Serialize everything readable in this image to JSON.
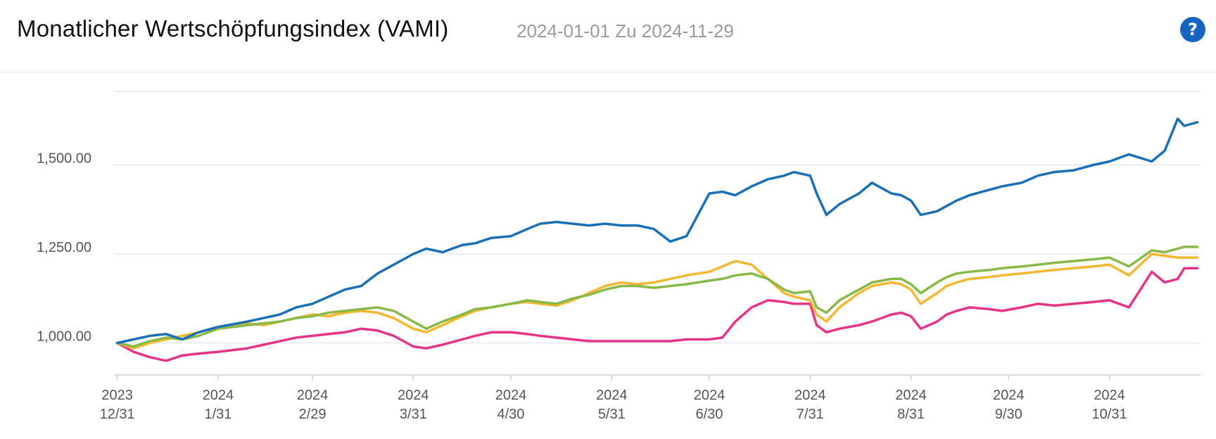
{
  "header": {
    "title": "Monatlicher Wertschöpfungsindex (VAMI)",
    "date_range": "2024-01-01 Zu 2024-11-29",
    "help_label": "?"
  },
  "colors": {
    "blue": "#1a6fb5",
    "green": "#88b848",
    "yellow": "#f5b731",
    "pink": "#e53488",
    "grid": "#e3e8ee",
    "axis": "#c8d0da",
    "help_button": "#1565c0"
  },
  "chart_data": {
    "type": "line",
    "title": "Monatlicher Wertschöpfungsindex (VAMI)",
    "xlabel": "",
    "ylabel": "",
    "ylim": [
      910,
      1760
    ],
    "yticks": [
      1000,
      1250,
      1500
    ],
    "ytick_labels": [
      "1,000.00",
      "1,250.00",
      "1,500.00"
    ],
    "grid": true,
    "xlim": [
      -1,
      333
    ],
    "x_tick_positions": [
      0,
      31,
      60,
      91,
      121,
      152,
      182,
      213,
      244,
      274,
      305
    ],
    "x_tick_years": [
      "2023",
      "2024",
      "2024",
      "2024",
      "2024",
      "2024",
      "2024",
      "2024",
      "2024",
      "2024",
      "2024"
    ],
    "x_tick_dates": [
      "12/31",
      "1/31",
      "2/29",
      "3/31",
      "4/30",
      "5/31",
      "6/30",
      "7/31",
      "8/31",
      "9/30",
      "10/31"
    ],
    "series": [
      {
        "color": "#1a6fb5",
        "x": [
          0,
          5,
          10,
          15,
          20,
          25,
          31,
          40,
          45,
          50,
          55,
          60,
          65,
          70,
          75,
          80,
          85,
          91,
          95,
          100,
          106,
          110,
          115,
          121,
          126,
          130,
          135,
          140,
          145,
          150,
          155,
          160,
          165,
          170,
          175,
          182,
          186,
          190,
          195,
          200,
          205,
          208,
          213,
          215,
          218,
          222,
          228,
          232,
          238,
          241,
          244,
          247,
          252,
          255,
          258,
          262,
          268,
          272,
          278,
          283,
          288,
          294,
          300,
          305,
          311,
          318,
          322,
          326,
          328,
          332
        ],
        "y": [
          1000,
          1010,
          1020,
          1025,
          1010,
          1030,
          1045,
          1060,
          1070,
          1080,
          1100,
          1110,
          1130,
          1150,
          1160,
          1195,
          1220,
          1250,
          1265,
          1255,
          1275,
          1280,
          1295,
          1300,
          1320,
          1335,
          1340,
          1335,
          1330,
          1335,
          1330,
          1330,
          1320,
          1285,
          1300,
          1420,
          1425,
          1415,
          1440,
          1460,
          1470,
          1480,
          1470,
          1420,
          1360,
          1390,
          1420,
          1450,
          1420,
          1415,
          1400,
          1360,
          1370,
          1385,
          1400,
          1415,
          1430,
          1440,
          1450,
          1470,
          1480,
          1485,
          1500,
          1510,
          1530,
          1510,
          1540,
          1630,
          1610,
          1620
        ]
      },
      {
        "color": "#88b848",
        "x": [
          0,
          5,
          10,
          15,
          20,
          25,
          31,
          40,
          45,
          50,
          55,
          60,
          65,
          70,
          75,
          80,
          85,
          91,
          95,
          100,
          106,
          110,
          115,
          121,
          126,
          130,
          135,
          140,
          145,
          150,
          155,
          160,
          165,
          170,
          175,
          182,
          186,
          190,
          195,
          200,
          205,
          208,
          213,
          215,
          218,
          222,
          228,
          232,
          238,
          241,
          244,
          247,
          252,
          255,
          258,
          262,
          268,
          272,
          278,
          283,
          288,
          294,
          300,
          305,
          311,
          318,
          322,
          326,
          328,
          332
        ],
        "y": [
          1000,
          990,
          1005,
          1015,
          1010,
          1020,
          1040,
          1050,
          1055,
          1060,
          1070,
          1075,
          1085,
          1090,
          1095,
          1100,
          1090,
          1060,
          1040,
          1060,
          1080,
          1095,
          1100,
          1110,
          1120,
          1115,
          1110,
          1125,
          1135,
          1150,
          1160,
          1160,
          1155,
          1160,
          1165,
          1175,
          1180,
          1190,
          1195,
          1180,
          1150,
          1140,
          1145,
          1100,
          1085,
          1120,
          1150,
          1170,
          1180,
          1180,
          1165,
          1140,
          1170,
          1185,
          1195,
          1200,
          1205,
          1210,
          1215,
          1220,
          1225,
          1230,
          1235,
          1240,
          1215,
          1260,
          1255,
          1265,
          1270,
          1270
        ]
      },
      {
        "color": "#f5b731",
        "x": [
          0,
          5,
          10,
          15,
          20,
          25,
          31,
          40,
          45,
          50,
          55,
          60,
          65,
          70,
          75,
          80,
          85,
          91,
          95,
          100,
          106,
          110,
          115,
          121,
          126,
          130,
          135,
          140,
          145,
          150,
          155,
          160,
          165,
          170,
          175,
          182,
          186,
          190,
          195,
          200,
          205,
          208,
          213,
          215,
          218,
          222,
          228,
          232,
          238,
          241,
          244,
          247,
          252,
          255,
          258,
          262,
          268,
          272,
          278,
          283,
          288,
          294,
          300,
          305,
          311,
          318,
          322,
          326,
          328,
          332
        ],
        "y": [
          1000,
          985,
          1000,
          1010,
          1020,
          1030,
          1045,
          1055,
          1050,
          1060,
          1070,
          1080,
          1075,
          1085,
          1090,
          1085,
          1070,
          1040,
          1030,
          1050,
          1075,
          1090,
          1100,
          1110,
          1115,
          1110,
          1105,
          1120,
          1140,
          1160,
          1170,
          1165,
          1170,
          1180,
          1190,
          1200,
          1215,
          1230,
          1220,
          1180,
          1140,
          1130,
          1120,
          1080,
          1060,
          1100,
          1140,
          1160,
          1170,
          1165,
          1150,
          1110,
          1140,
          1160,
          1170,
          1180,
          1185,
          1190,
          1195,
          1200,
          1205,
          1210,
          1215,
          1220,
          1190,
          1250,
          1245,
          1240,
          1240,
          1240
        ]
      },
      {
        "color": "#e53488",
        "x": [
          0,
          5,
          10,
          15,
          20,
          25,
          31,
          40,
          45,
          50,
          55,
          60,
          65,
          70,
          75,
          80,
          85,
          91,
          95,
          100,
          106,
          110,
          115,
          121,
          126,
          130,
          135,
          140,
          145,
          150,
          155,
          160,
          165,
          170,
          175,
          182,
          186,
          190,
          195,
          200,
          205,
          208,
          213,
          215,
          218,
          222,
          228,
          232,
          238,
          241,
          244,
          247,
          252,
          255,
          258,
          262,
          268,
          272,
          278,
          283,
          288,
          294,
          300,
          305,
          311,
          318,
          322,
          326,
          328,
          332
        ],
        "y": [
          1000,
          975,
          960,
          950,
          965,
          970,
          975,
          985,
          995,
          1005,
          1015,
          1020,
          1025,
          1030,
          1040,
          1035,
          1020,
          990,
          985,
          995,
          1010,
          1020,
          1030,
          1030,
          1025,
          1020,
          1015,
          1010,
          1005,
          1005,
          1005,
          1005,
          1005,
          1005,
          1010,
          1010,
          1015,
          1060,
          1100,
          1120,
          1115,
          1110,
          1110,
          1050,
          1030,
          1040,
          1050,
          1060,
          1080,
          1085,
          1075,
          1040,
          1060,
          1080,
          1090,
          1100,
          1095,
          1090,
          1100,
          1110,
          1105,
          1110,
          1115,
          1120,
          1100,
          1200,
          1170,
          1180,
          1210,
          1210
        ]
      }
    ]
  }
}
